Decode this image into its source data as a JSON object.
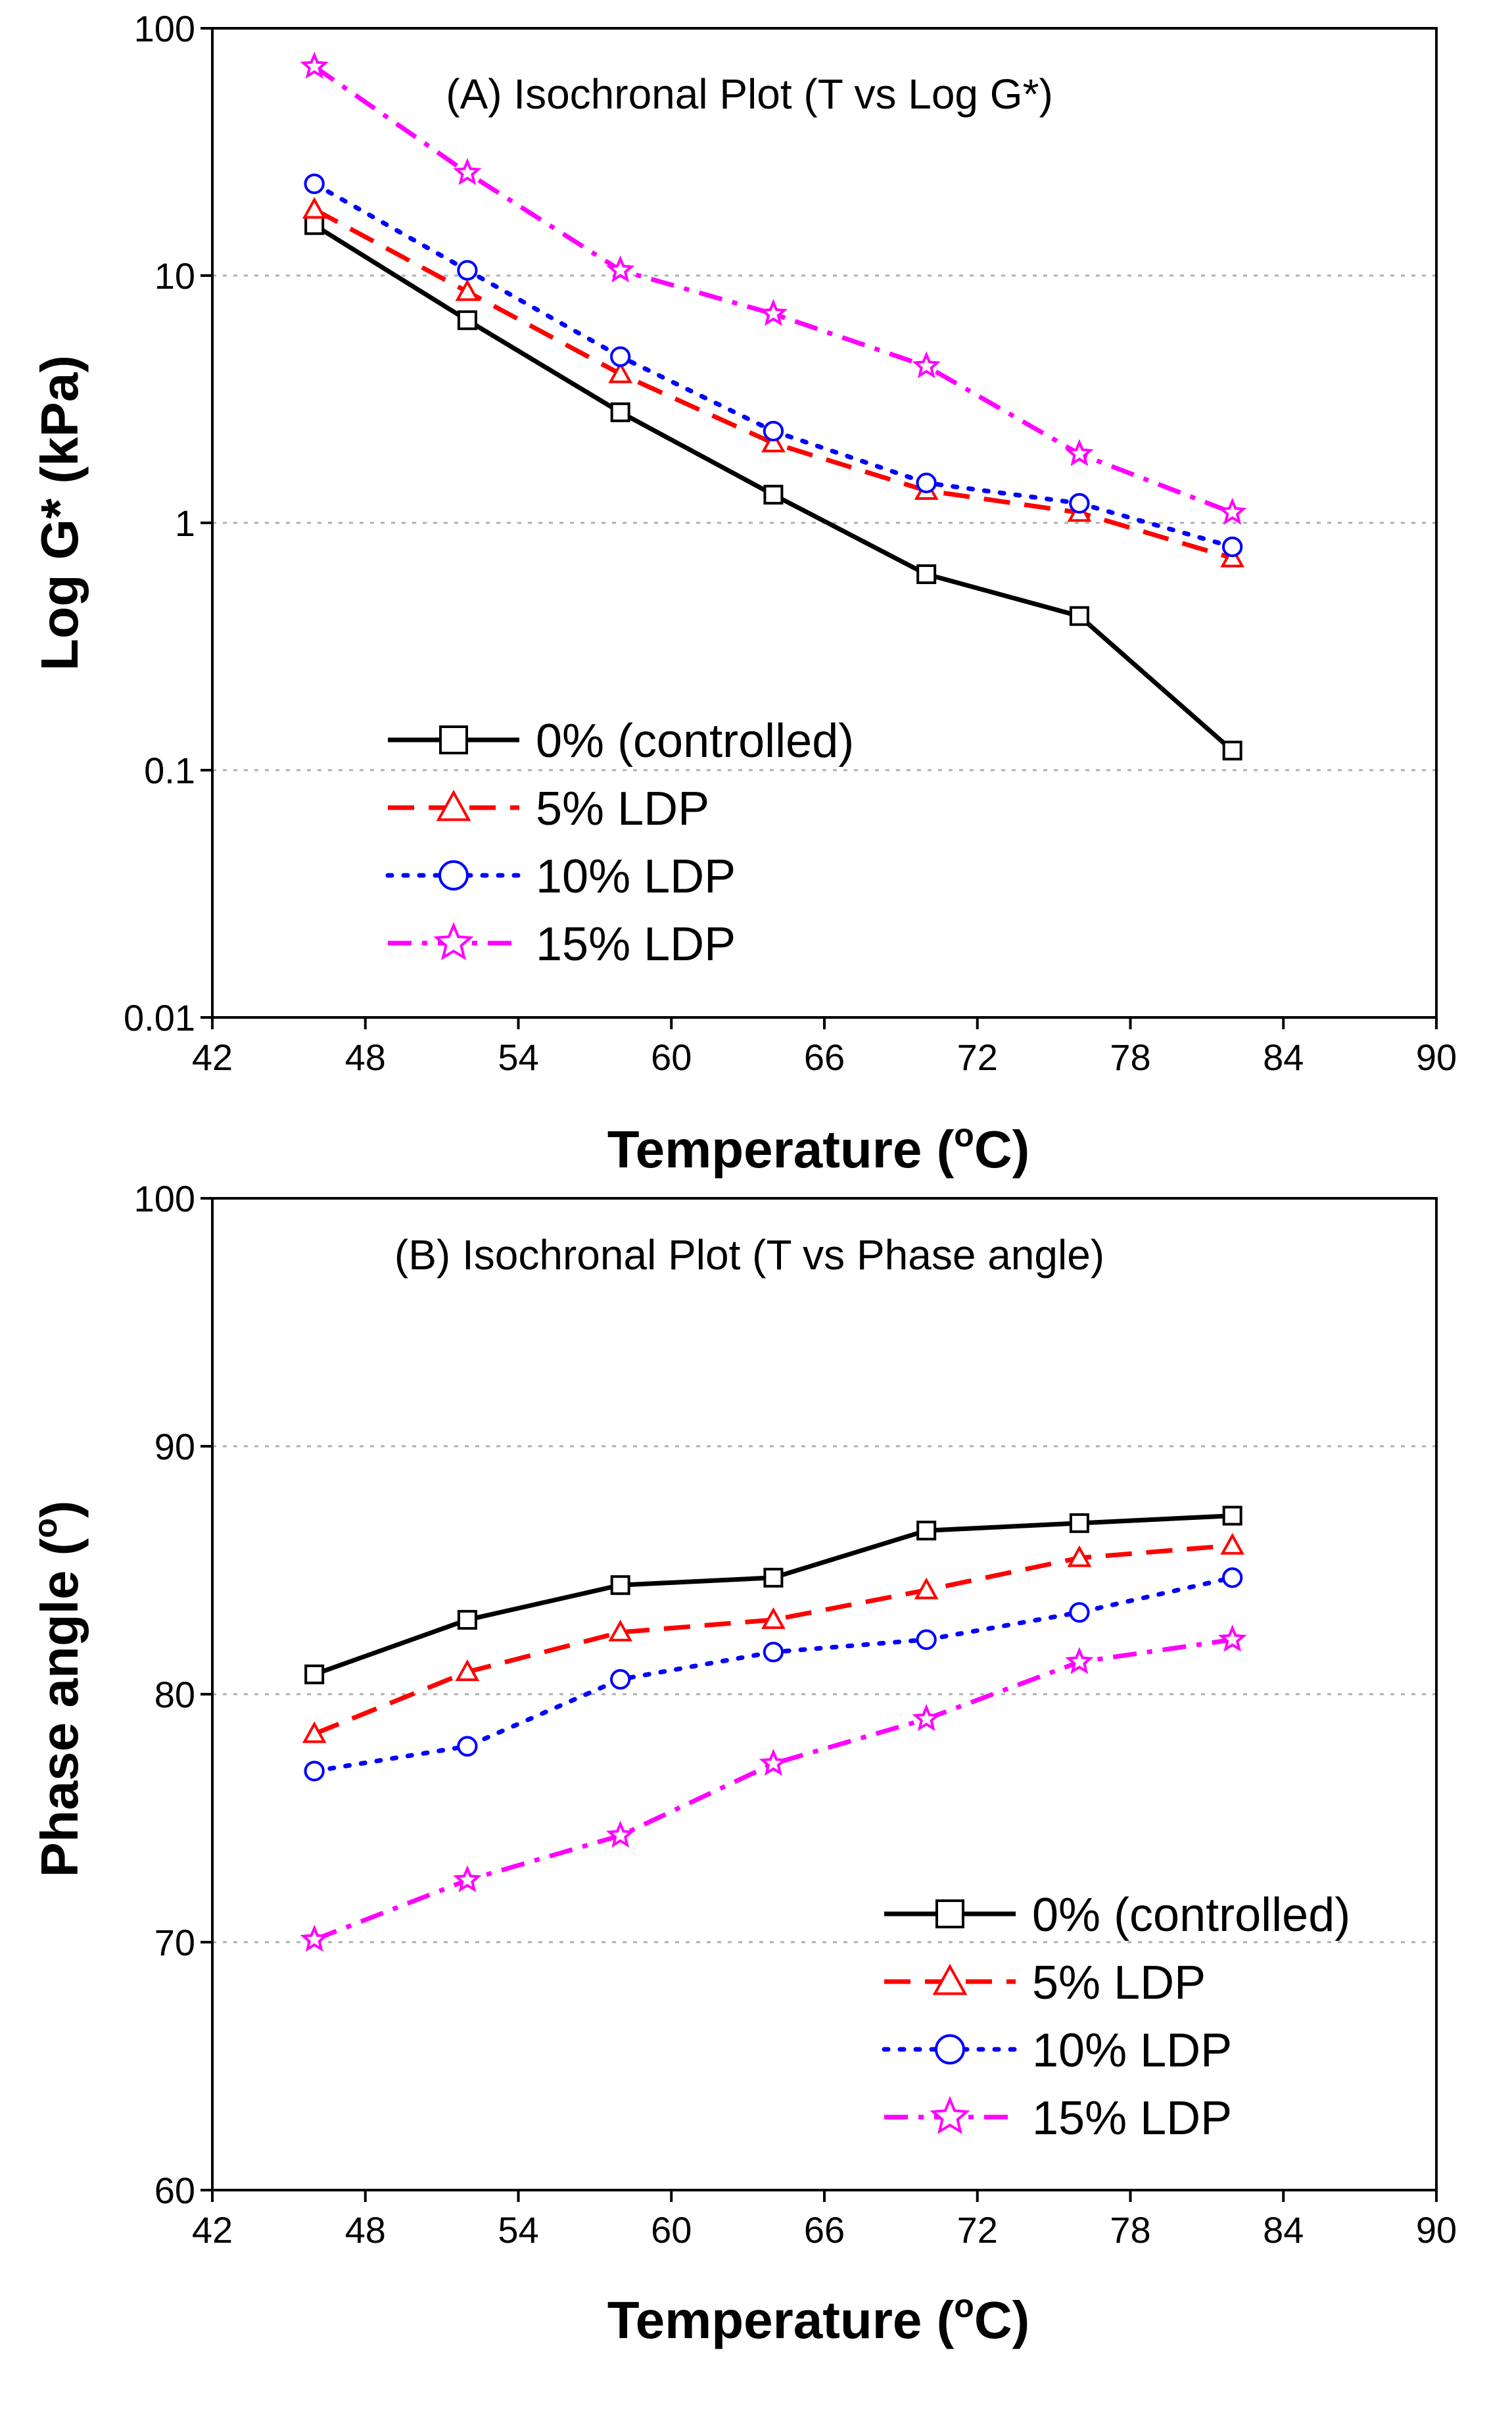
{
  "colors": {
    "0% (controlled)": "#000000",
    "5% LDP": "#ff0000",
    "10% LDP": "#0000ff",
    "15% LDP": "#ff00ff"
  },
  "chart_data": [
    {
      "type": "line",
      "title": "(A) Isochronal Plot (T vs Log G*)",
      "xlabel": "Temperature (",
      "xlabel_sup": "o",
      "xlabel_end": "C)",
      "ylabel": "Log G* (kPa)",
      "yscale": "log",
      "xlim": [
        42,
        90
      ],
      "ylim": [
        0.01,
        100
      ],
      "xticks": [
        42,
        48,
        54,
        60,
        66,
        72,
        78,
        84,
        90
      ],
      "xtick_labels": [
        "42",
        "48",
        "54",
        "60",
        "66",
        "72",
        "78",
        "84",
        "90"
      ],
      "yticks": [
        0.01,
        0.1,
        1,
        10,
        100
      ],
      "ytick_labels": [
        "0.01",
        "0.1",
        "1",
        "10",
        "100"
      ],
      "grid": "horizontal dotted at 0.1, 1, 10",
      "legend_position": "lower-left",
      "x": [
        46,
        52,
        58,
        64,
        70,
        76,
        82
      ],
      "series": [
        {
          "name": "0% (controlled)",
          "marker": "square",
          "linestyle": "solid",
          "values": [
            16,
            6.6,
            2.8,
            1.3,
            0.62,
            0.42,
            0.12
          ]
        },
        {
          "name": "5% LDP",
          "marker": "triangle",
          "linestyle": "dashed",
          "values": [
            18.5,
            8.6,
            4.0,
            2.1,
            1.35,
            1.1,
            0.72
          ]
        },
        {
          "name": "10% LDP",
          "marker": "circle",
          "linestyle": "dotted",
          "values": [
            23.5,
            10.5,
            4.7,
            2.35,
            1.45,
            1.2,
            0.8
          ]
        },
        {
          "name": "15% LDP",
          "marker": "star",
          "linestyle": "dashdot",
          "values": [
            70,
            26,
            10.5,
            7.0,
            4.3,
            1.9,
            1.1
          ]
        }
      ]
    },
    {
      "type": "line",
      "title": "(B) Isochronal Plot (T vs Phase angle)",
      "xlabel": "Temperature (",
      "xlabel_sup": "o",
      "xlabel_end": "C)",
      "ylabel": "Phase angle (",
      "ylabel_sup": "o",
      "ylabel_end": ")",
      "yscale": "linear",
      "xlim": [
        42,
        90
      ],
      "ylim": [
        60,
        100
      ],
      "xticks": [
        42,
        48,
        54,
        60,
        66,
        72,
        78,
        84,
        90
      ],
      "xtick_labels": [
        "42",
        "48",
        "54",
        "60",
        "66",
        "72",
        "78",
        "84",
        "90"
      ],
      "yticks": [
        60,
        70,
        80,
        90,
        100
      ],
      "ytick_labels": [
        "60",
        "70",
        "80",
        "90",
        "100"
      ],
      "grid": "horizontal dotted at 70, 80, 90",
      "legend_position": "lower-right",
      "x": [
        46,
        52,
        58,
        64,
        70,
        76,
        82
      ],
      "series": [
        {
          "name": "0% (controlled)",
          "marker": "square",
          "linestyle": "solid",
          "values": [
            80.8,
            83.0,
            84.4,
            84.7,
            86.6,
            86.9,
            87.2
          ]
        },
        {
          "name": "5% LDP",
          "marker": "triangle",
          "linestyle": "dashed",
          "values": [
            78.4,
            80.9,
            82.5,
            83.0,
            84.2,
            85.5,
            86.0
          ]
        },
        {
          "name": "10% LDP",
          "marker": "circle",
          "linestyle": "dotted",
          "values": [
            76.9,
            77.9,
            80.6,
            81.7,
            82.2,
            83.3,
            84.7
          ]
        },
        {
          "name": "15% LDP",
          "marker": "star",
          "linestyle": "dashdot",
          "values": [
            70.1,
            72.5,
            74.3,
            77.2,
            79.0,
            81.3,
            82.2
          ]
        }
      ]
    }
  ]
}
